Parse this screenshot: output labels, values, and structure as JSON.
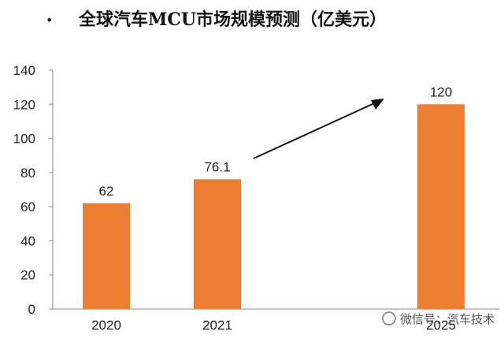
{
  "title": "全球汽车MCU市场规模预测（亿美元）",
  "watermark": "微信号：汽车技术",
  "colors": {
    "bar": "#ED7D31",
    "axis": "#888888",
    "text": "#222222"
  },
  "chart_data": {
    "type": "bar",
    "title": "全球汽车MCU市场规模预测（亿美元）",
    "categories": [
      "2020",
      "2021",
      "2025"
    ],
    "values": [
      62,
      76.1,
      120
    ],
    "data_labels": [
      "62",
      "76.1",
      "120"
    ],
    "ylim": [
      0,
      140
    ],
    "yticks": [
      0,
      20,
      40,
      60,
      80,
      100,
      120,
      140
    ],
    "xlabel": "",
    "ylabel": "",
    "grid": false,
    "legend": "none",
    "annotation": "arrow from 2021 toward 2025"
  }
}
